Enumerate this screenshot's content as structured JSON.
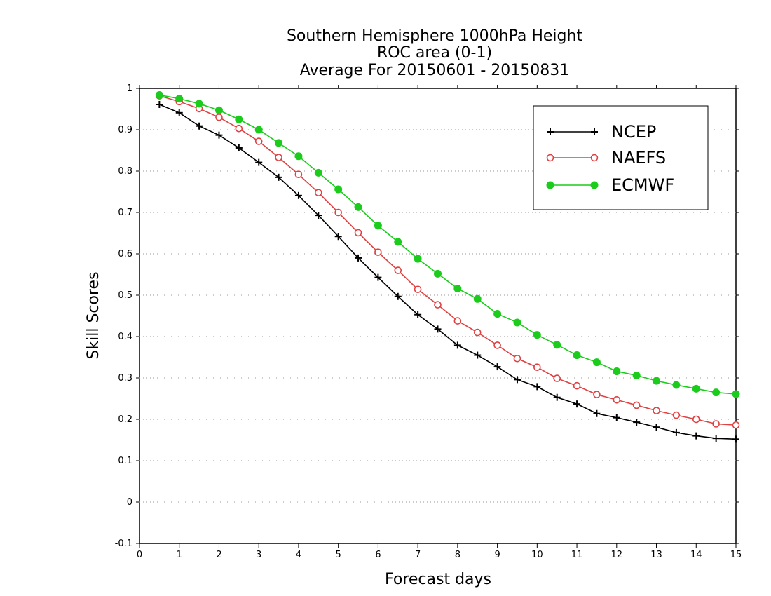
{
  "chart_data": {
    "type": "line",
    "title": "Southern Hemisphere 1000hPa Height",
    "subtitle": "ROC area (0-1)",
    "subtitle2": "Average For 20150601 - 20150831",
    "xlabel": "Forecast days",
    "ylabel": "Skill Scores",
    "xlim": [
      0,
      15
    ],
    "ylim": [
      -0.1,
      1
    ],
    "xticks": [
      "0",
      "1",
      "2",
      "3",
      "4",
      "5",
      "6",
      "7",
      "8",
      "9",
      "10",
      "11",
      "12",
      "13",
      "14",
      "15"
    ],
    "yticks": [
      "-0.1",
      "0",
      "0.1",
      "0.2",
      "0.3",
      "0.4",
      "0.5",
      "0.6",
      "0.7",
      "0.8",
      "0.9",
      "1"
    ],
    "grid": "horizontal dotted",
    "legend_position": "top-right",
    "x": [
      0.5,
      1,
      1.5,
      2,
      2.5,
      3,
      3.5,
      4,
      4.5,
      5,
      5.5,
      6,
      6.5,
      7,
      7.5,
      8,
      8.5,
      9,
      9.5,
      10,
      10.5,
      11,
      11.5,
      12,
      12.5,
      13,
      13.5,
      14,
      14.5,
      15
    ],
    "series": [
      {
        "name": "NCEP",
        "color": "#000000",
        "marker": "plus",
        "values": [
          0.961,
          0.941,
          0.909,
          0.887,
          0.856,
          0.821,
          0.785,
          0.741,
          0.693,
          0.642,
          0.59,
          0.543,
          0.497,
          0.453,
          0.418,
          0.379,
          0.355,
          0.327,
          0.296,
          0.279,
          0.253,
          0.237,
          0.214,
          0.204,
          0.193,
          0.181,
          0.168,
          0.16,
          0.154,
          0.152
        ]
      },
      {
        "name": "NAEFS",
        "color": "#e04040",
        "marker": "open-circle",
        "values": [
          0.982,
          0.968,
          0.951,
          0.93,
          0.903,
          0.872,
          0.833,
          0.792,
          0.748,
          0.7,
          0.651,
          0.604,
          0.56,
          0.514,
          0.477,
          0.438,
          0.41,
          0.379,
          0.347,
          0.326,
          0.299,
          0.281,
          0.26,
          0.247,
          0.234,
          0.221,
          0.21,
          0.2,
          0.189,
          0.186
        ]
      },
      {
        "name": "ECMWF",
        "color": "#1ccc1c",
        "marker": "filled-circle",
        "values": [
          0.984,
          0.975,
          0.963,
          0.947,
          0.925,
          0.9,
          0.868,
          0.836,
          0.796,
          0.756,
          0.713,
          0.668,
          0.629,
          0.588,
          0.552,
          0.516,
          0.491,
          0.455,
          0.434,
          0.404,
          0.38,
          0.355,
          0.338,
          0.316,
          0.306,
          0.293,
          0.283,
          0.274,
          0.265,
          0.261
        ]
      }
    ]
  }
}
